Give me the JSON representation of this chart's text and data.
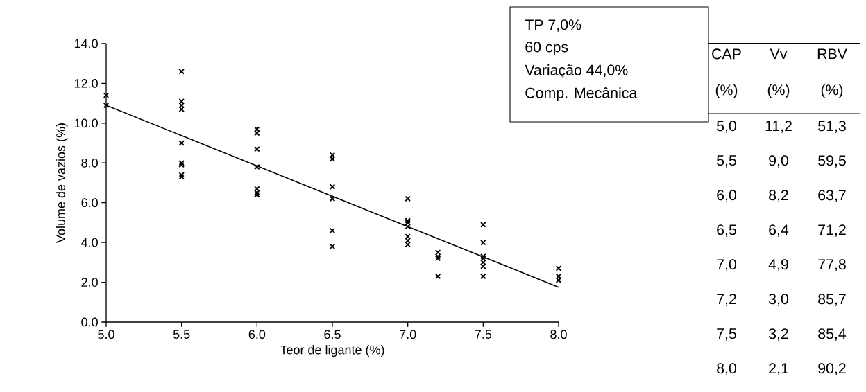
{
  "chart_data": {
    "type": "scatter",
    "xlabel": "Teor de ligante (%)",
    "ylabel": "Volume de vazios (%)",
    "xlim": [
      5,
      8
    ],
    "ylim": [
      0,
      14
    ],
    "xticks": [
      {
        "value": 5,
        "label": "5.0"
      },
      {
        "value": 5.5,
        "label": "5.5"
      },
      {
        "value": 6,
        "label": "6.0"
      },
      {
        "value": 6.5,
        "label": "6.5"
      },
      {
        "value": 7,
        "label": "7.0"
      },
      {
        "value": 7.5,
        "label": "7.5"
      },
      {
        "value": 8,
        "label": "8.0"
      }
    ],
    "yticks": [
      {
        "value": 0,
        "label": "0.0"
      },
      {
        "value": 2,
        "label": "2.0"
      },
      {
        "value": 4,
        "label": "4.0"
      },
      {
        "value": 6,
        "label": "6.0"
      },
      {
        "value": 8,
        "label": "8.0"
      },
      {
        "value": 10,
        "label": "10.0"
      },
      {
        "value": 12,
        "label": "12.0"
      },
      {
        "value": 14,
        "label": "14.0"
      }
    ],
    "marker": "cross",
    "series": [
      {
        "color": "#000000",
        "x": [
          5,
          5,
          5.5,
          5.5,
          5.5,
          5.5,
          5.5,
          5.5,
          5.5,
          5.5,
          5.5,
          6,
          6,
          6,
          6,
          6,
          6,
          6,
          6.5,
          6.5,
          6.5,
          6.5,
          6.5,
          6.5,
          7,
          7,
          7,
          7,
          7,
          7,
          7,
          7.2,
          7.2,
          7.2,
          7.2,
          7.5,
          7.5,
          7.5,
          7.5,
          7.5,
          7.5,
          7.5,
          8,
          8,
          8
        ],
        "values": [
          11.4,
          10.9,
          12.6,
          11.1,
          10.9,
          10.7,
          9.0,
          8.0,
          7.9,
          7.4,
          7.3,
          9.7,
          9.5,
          8.7,
          7.8,
          6.7,
          6.5,
          6.4,
          8.4,
          8.2,
          6.8,
          6.2,
          4.6,
          3.8,
          6.2,
          5.1,
          5.0,
          4.8,
          4.3,
          4.1,
          3.9,
          3.5,
          3.3,
          3.2,
          2.3,
          4.9,
          4.0,
          3.3,
          3.2,
          3.0,
          2.8,
          2.3,
          2.7,
          2.3,
          2.1
        ]
      },
      {
        "type": "line",
        "color": "#000000",
        "marker": "none",
        "line_style": "solid",
        "x": [
          5,
          8
        ],
        "values": [
          10.9,
          1.75
        ]
      }
    ],
    "annotations": [
      "TP 7,0%",
      "60 cps",
      "Variação 44,0%",
      "Comp. Mecânica",
      "CAP (%)",
      "Vv (%)",
      "RBV (%)",
      "5,0",
      "11,2",
      "51,3",
      "5,5",
      "9,0",
      "59,5",
      "6,0",
      "8,2",
      "63,7",
      "6,5",
      "6,4",
      "71,2",
      "7,0",
      "4,9",
      "77,8",
      "7,2",
      "3,0",
      "85,7",
      "7,5",
      "3,2",
      "85,4",
      "8,0",
      "2,1",
      "90,2"
    ]
  }
}
